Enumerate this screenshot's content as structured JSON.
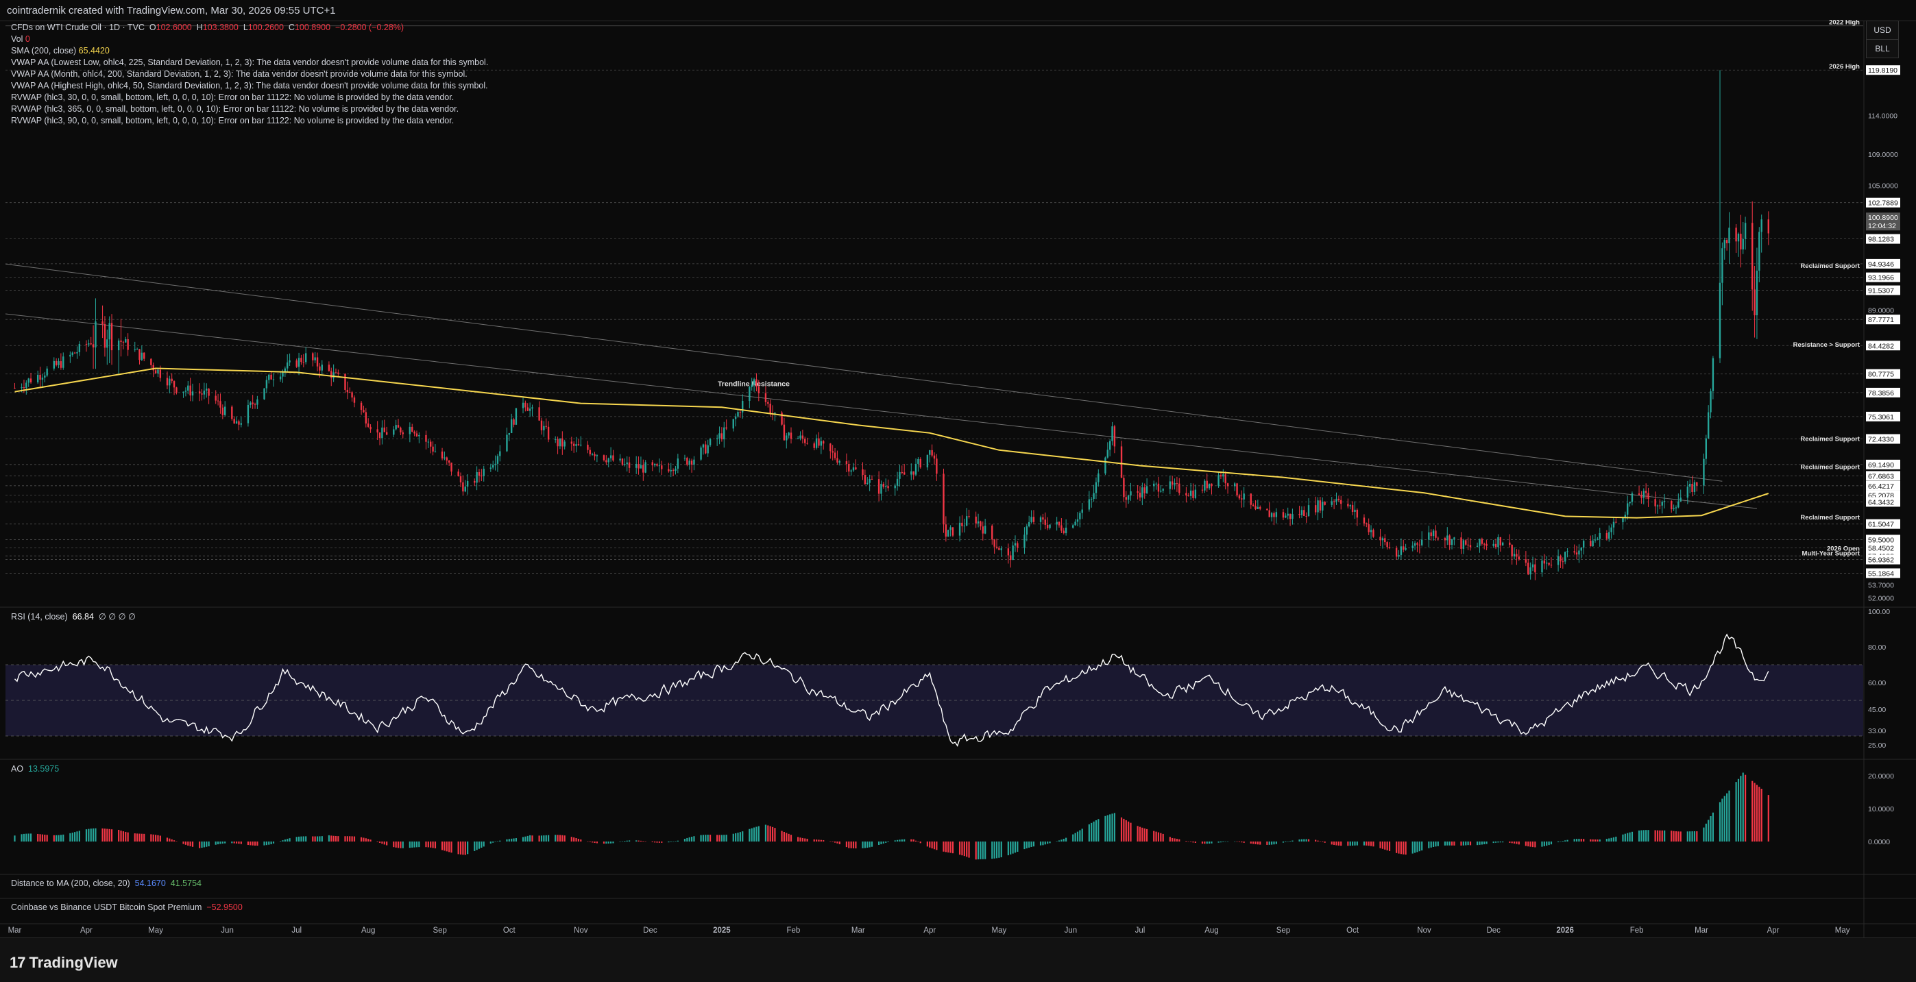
{
  "header": {
    "created_by": "cointradernik created with TradingView.com, Mar 30, 2026 09:55 UTC+1"
  },
  "legend": {
    "symbol": "CFDs on WTI Crude Oil · 1D · TVC",
    "ohlc_o_label": "O",
    "ohlc_o": "102.6000",
    "ohlc_h_label": "H",
    "ohlc_h": "103.3800",
    "ohlc_l_label": "L",
    "ohlc_l": "100.2600",
    "ohlc_c_label": "C",
    "ohlc_c": "100.8900",
    "ohlc_change": "−0.2800 (−0.28%)",
    "vol_label": "Vol",
    "vol_value": "0",
    "sma_label": "SMA (200, close)",
    "sma_value": "65.4420",
    "indicators": [
      "VWAP AA (Lowest Low, ohlc4, 225, Standard Deviation, 1, 2, 3): The data vendor doesn't provide volume data for this symbol.",
      "VWAP AA (Month, ohlc4, 200, Standard Deviation, 1, 2, 3): The data vendor doesn't provide volume data for this symbol.",
      "VWAP AA (Highest High, ohlc4, 50, Standard Deviation, 1, 2, 3): The data vendor doesn't provide volume data for this symbol.",
      "RVWAP (hlc3, 30, 0, 0, small, bottom, left, 0, 0, 0, 10): Error on bar 11122: No volume is provided by the data vendor.",
      "RVWAP (hlc3, 365, 0, 0, small, bottom, left, 0, 0, 0, 10): Error on bar 11122: No volume is provided by the data vendor.",
      "RVWAP (hlc3, 90, 0, 0, small, bottom, left, 0, 0, 0, 10): Error on bar 11122: No volume is provided by the data vendor."
    ],
    "rsi_label": "RSI (14, close)",
    "rsi_value": "66.84",
    "rsi_extra": "∅ ∅ ∅ ∅",
    "ao_label": "AO",
    "ao_value": "13.5975",
    "dist_label": "Distance to MA (200, close, 20)",
    "dist_v1": "54.1670",
    "dist_v2": "41.5754",
    "coinbase_label": "Coinbase vs Binance USDT Bitcoin Spot Premium",
    "coinbase_value": "−52.9500"
  },
  "buttons": {
    "currency": "USD",
    "unit": "BLL"
  },
  "footer": {
    "brand": "TradingView",
    "brand_mark": "17"
  },
  "colors": {
    "up": "#26a69a",
    "down": "#f23645",
    "sma": "#f7d74f",
    "bg": "#0b0b0b",
    "level": "#7a7a7a"
  },
  "chart_data": {
    "type": "candlestick",
    "title": "CFDs on WTI Crude Oil · 1D · TVC",
    "x_tick_labels": [
      "Mar",
      "Apr",
      "May",
      "Jun",
      "Jul",
      "Aug",
      "Sep",
      "Oct",
      "Nov",
      "Dec",
      "2025",
      "Feb",
      "Mar",
      "Apr",
      "May",
      "Jun",
      "Jul",
      "Aug",
      "Sep",
      "Oct",
      "Nov",
      "Dec",
      "2026",
      "Feb",
      "Mar",
      "Apr",
      "May"
    ],
    "price_axis_ticks": [
      "114.0000",
      "109.0000",
      "105.0000",
      "89.0000",
      "53.7000",
      "52.0000"
    ],
    "price_range": [
      51,
      126
    ],
    "close_path": [
      [
        "2024-03-01",
        79
      ],
      [
        "2024-03-20",
        82
      ],
      [
        "2024-04-10",
        86.5
      ],
      [
        "2024-04-25",
        83
      ],
      [
        "2024-05-10",
        79
      ],
      [
        "2024-05-25",
        78
      ],
      [
        "2024-06-05",
        74
      ],
      [
        "2024-06-20",
        80.5
      ],
      [
        "2024-07-05",
        83
      ],
      [
        "2024-07-20",
        80
      ],
      [
        "2024-08-05",
        73
      ],
      [
        "2024-08-20",
        74
      ],
      [
        "2024-09-05",
        69
      ],
      [
        "2024-09-12",
        66
      ],
      [
        "2024-09-25",
        70
      ],
      [
        "2024-10-07",
        77.5
      ],
      [
        "2024-10-20",
        72
      ],
      [
        "2024-11-05",
        71
      ],
      [
        "2024-11-20",
        69
      ],
      [
        "2024-12-05",
        68.5
      ],
      [
        "2024-12-20",
        70
      ],
      [
        "2025-01-05",
        74
      ],
      [
        "2025-01-15",
        80
      ],
      [
        "2025-01-28",
        73
      ],
      [
        "2025-02-10",
        72
      ],
      [
        "2025-02-25",
        69
      ],
      [
        "2025-03-10",
        66
      ],
      [
        "2025-03-25",
        68.5
      ],
      [
        "2025-04-02",
        71
      ],
      [
        "2025-04-08",
        60
      ],
      [
        "2025-04-20",
        62.5
      ],
      [
        "2025-05-05",
        57
      ],
      [
        "2025-05-15",
        62
      ],
      [
        "2025-05-30",
        61
      ],
      [
        "2025-06-10",
        64.5
      ],
      [
        "2025-06-19",
        73.8
      ],
      [
        "2025-06-24",
        65
      ],
      [
        "2025-07-10",
        66.5
      ],
      [
        "2025-07-25",
        65.5
      ],
      [
        "2025-08-05",
        68
      ],
      [
        "2025-08-20",
        63
      ],
      [
        "2025-09-05",
        62.5
      ],
      [
        "2025-09-25",
        65
      ],
      [
        "2025-10-08",
        61
      ],
      [
        "2025-10-20",
        57.5
      ],
      [
        "2025-11-05",
        60.5
      ],
      [
        "2025-11-20",
        58.5
      ],
      [
        "2025-12-05",
        59.5
      ],
      [
        "2025-12-16",
        55.5
      ],
      [
        "2026-01-05",
        58
      ],
      [
        "2026-01-20",
        60.5
      ],
      [
        "2026-02-01",
        65.5
      ],
      [
        "2026-02-15",
        63.5
      ],
      [
        "2026-02-28",
        67
      ],
      [
        "2026-03-03",
        72
      ],
      [
        "2026-03-09",
        94
      ],
      [
        "2026-03-12",
        99
      ],
      [
        "2026-03-16",
        96
      ],
      [
        "2026-03-20",
        99.5
      ],
      [
        "2026-03-24",
        89
      ],
      [
        "2026-03-27",
        102.7
      ],
      [
        "2026-03-30",
        100.89
      ]
    ],
    "sma_200_path": [
      [
        "2024-03-01",
        78.5
      ],
      [
        "2024-05-01",
        81.5
      ],
      [
        "2024-07-01",
        81
      ],
      [
        "2024-09-01",
        79
      ],
      [
        "2024-11-01",
        77
      ],
      [
        "2025-01-01",
        76.5
      ],
      [
        "2025-03-01",
        74.2
      ],
      [
        "2025-04-01",
        73.2
      ],
      [
        "2025-05-01",
        71
      ],
      [
        "2025-07-01",
        69
      ],
      [
        "2025-09-01",
        67.5
      ],
      [
        "2025-11-01",
        65.5
      ],
      [
        "2026-01-01",
        62.5
      ],
      [
        "2026-02-01",
        62.3
      ],
      [
        "2026-03-01",
        62.6
      ],
      [
        "2026-03-30",
        65.44
      ]
    ],
    "levels": [
      {
        "price": 119.819,
        "label": "119.8190"
      },
      {
        "price": 102.7889,
        "label": "102.7889"
      },
      {
        "price": 98.1283,
        "label": "98.1283"
      },
      {
        "price": 94.9346,
        "label": "94.9346"
      },
      {
        "price": 93.1966,
        "label": "93.1966"
      },
      {
        "price": 91.5307,
        "label": "91.5307"
      },
      {
        "price": 87.7771,
        "label": "87.7771"
      },
      {
        "price": 84.4282,
        "label": "84.4282"
      },
      {
        "price": 80.7775,
        "label": "80.7775"
      },
      {
        "price": 78.3856,
        "label": "78.3856"
      },
      {
        "price": 75.3061,
        "label": "75.3061"
      },
      {
        "price": 72.433,
        "label": "72.4330"
      },
      {
        "price": 69.149,
        "label": "69.1490"
      },
      {
        "price": 67.6863,
        "label": "67.6863"
      },
      {
        "price": 66.4217,
        "label": "66.4217"
      },
      {
        "price": 65.2078,
        "label": "65.2078"
      },
      {
        "price": 64.3432,
        "label": "64.3432"
      },
      {
        "price": 61.5047,
        "label": "61.5047"
      },
      {
        "price": 59.5,
        "label": "59.5000"
      },
      {
        "price": 58.4502,
        "label": "58.4502"
      },
      {
        "price": 57.41,
        "label": "57.4100"
      },
      {
        "price": 56.9362,
        "label": "56.9362"
      },
      {
        "price": 55.1864,
        "label": "55.1864"
      }
    ],
    "level_annotations": [
      {
        "price": 125.5,
        "text": "2022 High"
      },
      {
        "price": 119.819,
        "text": "2026 High"
      },
      {
        "price": 94.2,
        "text": "Reclaimed Support"
      },
      {
        "price": 84.1,
        "text": "Resistance > Support"
      },
      {
        "price": 72.0,
        "text": "Reclaimed Support"
      },
      {
        "price": 68.4,
        "text": "Reclaimed Support"
      },
      {
        "price": 61.9,
        "text": "Reclaimed Support"
      },
      {
        "price": 57.9,
        "text": "2026 Open"
      },
      {
        "price": 57.3,
        "text": "Multi-Year Support"
      }
    ],
    "trendline_label": "Trendline Resistance",
    "current_price": {
      "price": 100.89,
      "label": "100.8900",
      "countdown": "12:04:32"
    },
    "rsi": {
      "ticks": [
        "100.00",
        "80.00",
        "60.00",
        "45.00",
        "33.00",
        "25.00"
      ],
      "band": [
        30,
        70
      ],
      "path": [
        [
          "2024-03-01",
          64
        ],
        [
          "2024-04-05",
          73
        ],
        [
          "2024-05-05",
          38
        ],
        [
          "2024-06-05",
          30
        ],
        [
          "2024-06-25",
          66
        ],
        [
          "2024-08-05",
          35
        ],
        [
          "2024-08-25",
          52
        ],
        [
          "2024-09-12",
          30
        ],
        [
          "2024-10-07",
          68
        ],
        [
          "2024-11-05",
          45
        ],
        [
          "2024-12-10",
          57
        ],
        [
          "2025-01-15",
          76
        ],
        [
          "2025-02-10",
          55
        ],
        [
          "2025-03-05",
          40
        ],
        [
          "2025-04-01",
          64
        ],
        [
          "2025-04-09",
          26
        ],
        [
          "2025-05-05",
          33
        ],
        [
          "2025-05-20",
          55
        ],
        [
          "2025-06-20",
          75
        ],
        [
          "2025-07-10",
          52
        ],
        [
          "2025-08-01",
          63
        ],
        [
          "2025-08-20",
          40
        ],
        [
          "2025-09-20",
          58
        ],
        [
          "2025-10-20",
          33
        ],
        [
          "2025-11-10",
          55
        ],
        [
          "2025-12-16",
          32
        ],
        [
          "2026-01-10",
          55
        ],
        [
          "2026-02-05",
          68
        ],
        [
          "2026-02-25",
          55
        ],
        [
          "2026-03-12",
          86
        ],
        [
          "2026-03-24",
          62
        ],
        [
          "2026-03-30",
          66.84
        ]
      ]
    },
    "ao": {
      "ticks": [
        "20.0000",
        "10.0000",
        "0.0000"
      ],
      "path": [
        [
          "2024-03-01",
          1.5
        ],
        [
          "2024-04-15",
          4
        ],
        [
          "2024-05-20",
          -1.5
        ],
        [
          "2024-06-20",
          -0.5
        ],
        [
          "2024-07-15",
          2.5
        ],
        [
          "2024-08-15",
          -1.5
        ],
        [
          "2024-09-12",
          -3.5
        ],
        [
          "2024-10-10",
          2.5
        ],
        [
          "2024-11-15",
          -0.5
        ],
        [
          "2024-12-15",
          0.5
        ],
        [
          "2025-01-20",
          4.5
        ],
        [
          "2025-02-25",
          -2
        ],
        [
          "2025-03-25",
          0.5
        ],
        [
          "2025-04-20",
          -6
        ],
        [
          "2025-05-20",
          -1.5
        ],
        [
          "2025-06-20",
          8.5
        ],
        [
          "2025-07-15",
          0.5
        ],
        [
          "2025-08-15",
          -0.8
        ],
        [
          "2025-09-15",
          0.3
        ],
        [
          "2025-10-25",
          -3.5
        ],
        [
          "2025-11-20",
          -0.5
        ],
        [
          "2025-12-20",
          -1.2
        ],
        [
          "2026-01-20",
          1.5
        ],
        [
          "2026-02-15",
          4
        ],
        [
          "2026-03-01",
          2.5
        ],
        [
          "2026-03-10",
          13
        ],
        [
          "2026-03-19",
          21.5
        ],
        [
          "2026-03-30",
          13.6
        ]
      ]
    }
  }
}
